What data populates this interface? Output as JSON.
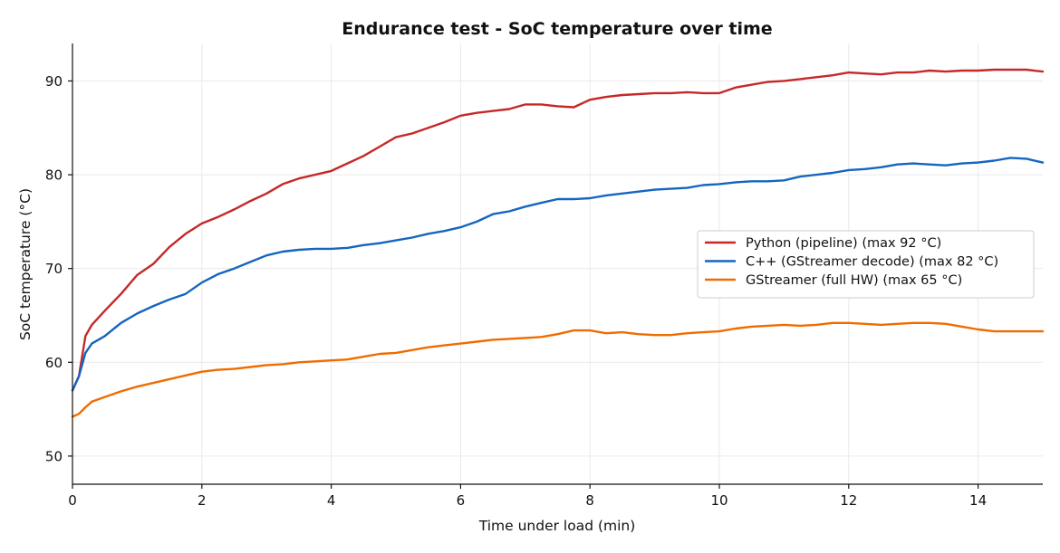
{
  "chart_data": {
    "type": "line",
    "title": "Endurance test - SoC temperature over time",
    "xlabel": "Time under load (min)",
    "ylabel": "SoC temperature (°C)",
    "xlim": [
      0,
      15
    ],
    "ylim": [
      47,
      94
    ],
    "xticks": [
      0,
      2,
      4,
      6,
      8,
      10,
      12,
      14
    ],
    "yticks": [
      50,
      60,
      70,
      80,
      90
    ],
    "grid": true,
    "legend_position": "center-right",
    "series": [
      {
        "name": "Python (pipeline) (max 92 °C)",
        "color": "#c62828",
        "x": [
          0,
          0.1,
          0.2,
          0.3,
          0.5,
          0.75,
          1.0,
          1.25,
          1.5,
          1.75,
          2.0,
          2.25,
          2.5,
          2.75,
          3.0,
          3.25,
          3.5,
          3.75,
          4.0,
          4.25,
          4.5,
          4.75,
          5.0,
          5.25,
          5.5,
          5.75,
          6.0,
          6.25,
          6.5,
          6.75,
          7.0,
          7.25,
          7.5,
          7.75,
          8.0,
          8.25,
          8.5,
          8.75,
          9.0,
          9.25,
          9.5,
          9.75,
          10.0,
          10.25,
          10.5,
          10.75,
          11.0,
          11.25,
          11.5,
          11.75,
          12.0,
          12.25,
          12.5,
          12.75,
          13.0,
          13.25,
          13.5,
          13.75,
          14.0,
          14.25,
          14.5,
          14.75,
          15.0
        ],
        "y": [
          57.0,
          58.5,
          62.8,
          64.0,
          65.5,
          67.3,
          69.3,
          70.5,
          72.3,
          73.7,
          74.8,
          75.5,
          76.3,
          77.2,
          78.0,
          79.0,
          79.6,
          80.0,
          80.4,
          81.2,
          82.0,
          83.0,
          84.0,
          84.4,
          85.0,
          85.6,
          86.3,
          86.6,
          86.8,
          87.0,
          87.5,
          87.5,
          87.3,
          87.2,
          88.0,
          88.3,
          88.5,
          88.6,
          88.7,
          88.7,
          88.8,
          88.7,
          88.7,
          89.3,
          89.6,
          89.9,
          90.0,
          90.2,
          90.4,
          90.6,
          90.9,
          90.8,
          90.7,
          90.9,
          90.9,
          91.1,
          91.0,
          91.1,
          91.1,
          91.2,
          91.2,
          91.2,
          91.0
        ]
      },
      {
        "name": "C++ (GStreamer decode) (max 82 °C)",
        "color": "#1565c0",
        "x": [
          0,
          0.1,
          0.2,
          0.3,
          0.5,
          0.75,
          1.0,
          1.25,
          1.5,
          1.75,
          2.0,
          2.25,
          2.5,
          2.75,
          3.0,
          3.25,
          3.5,
          3.75,
          4.0,
          4.25,
          4.5,
          4.75,
          5.0,
          5.25,
          5.5,
          5.75,
          6.0,
          6.25,
          6.5,
          6.75,
          7.0,
          7.25,
          7.5,
          7.75,
          8.0,
          8.25,
          8.5,
          8.75,
          9.0,
          9.25,
          9.5,
          9.75,
          10.0,
          10.25,
          10.5,
          10.75,
          11.0,
          11.25,
          11.5,
          11.75,
          12.0,
          12.25,
          12.5,
          12.75,
          13.0,
          13.25,
          13.5,
          13.75,
          14.0,
          14.25,
          14.5,
          14.75,
          15.0
        ],
        "y": [
          57.0,
          58.5,
          61.0,
          62.0,
          62.8,
          64.2,
          65.2,
          66.0,
          66.7,
          67.3,
          68.5,
          69.4,
          70.0,
          70.7,
          71.4,
          71.8,
          72.0,
          72.1,
          72.1,
          72.2,
          72.5,
          72.7,
          73.0,
          73.3,
          73.7,
          74.0,
          74.4,
          75.0,
          75.8,
          76.1,
          76.6,
          77.0,
          77.4,
          77.4,
          77.5,
          77.8,
          78.0,
          78.2,
          78.4,
          78.5,
          78.6,
          78.9,
          79.0,
          79.2,
          79.3,
          79.3,
          79.4,
          79.8,
          80.0,
          80.2,
          80.5,
          80.6,
          80.8,
          81.1,
          81.2,
          81.1,
          81.0,
          81.2,
          81.3,
          81.5,
          81.8,
          81.7,
          81.3
        ]
      },
      {
        "name": "GStreamer (full HW) (max 65 °C)",
        "color": "#ef6c00",
        "x": [
          0,
          0.1,
          0.2,
          0.3,
          0.5,
          0.75,
          1.0,
          1.25,
          1.5,
          1.75,
          2.0,
          2.25,
          2.5,
          2.75,
          3.0,
          3.25,
          3.5,
          3.75,
          4.0,
          4.25,
          4.5,
          4.75,
          5.0,
          5.25,
          5.5,
          5.75,
          6.0,
          6.25,
          6.5,
          6.75,
          7.0,
          7.25,
          7.5,
          7.75,
          8.0,
          8.25,
          8.5,
          8.75,
          9.0,
          9.25,
          9.5,
          9.75,
          10.0,
          10.25,
          10.5,
          10.75,
          11.0,
          11.25,
          11.5,
          11.75,
          12.0,
          12.25,
          12.5,
          12.75,
          13.0,
          13.25,
          13.5,
          13.75,
          14.0,
          14.25,
          14.5,
          14.75,
          15.0
        ],
        "y": [
          54.2,
          54.5,
          55.2,
          55.8,
          56.3,
          56.9,
          57.4,
          57.8,
          58.2,
          58.6,
          59.0,
          59.2,
          59.3,
          59.5,
          59.7,
          59.8,
          60.0,
          60.1,
          60.2,
          60.3,
          60.6,
          60.9,
          61.0,
          61.3,
          61.6,
          61.8,
          62.0,
          62.2,
          62.4,
          62.5,
          62.6,
          62.7,
          63.0,
          63.4,
          63.4,
          63.1,
          63.2,
          63.0,
          62.9,
          62.9,
          63.1,
          63.2,
          63.3,
          63.6,
          63.8,
          63.9,
          64.0,
          63.9,
          64.0,
          64.2,
          64.2,
          64.1,
          64.0,
          64.1,
          64.2,
          64.2,
          64.1,
          63.8,
          63.5,
          63.3,
          63.3,
          63.3,
          63.3
        ]
      }
    ]
  }
}
